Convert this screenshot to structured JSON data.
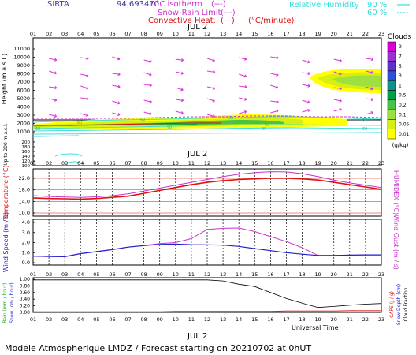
{
  "header": {
    "station": "SIRTA",
    "code": "94.693470",
    "isotherm_label": "0°C isotherm",
    "snow_rain_label": "Snow-Rain Limit",
    "convective_label": "Convective Heat.",
    "convective_unit": "(°C/minute)",
    "rh_label": "Relative Humidity",
    "rh_90": "90 %",
    "rh_60": "60 %",
    "dashed_sample": "(---)",
    "solid_sample": "(—)"
  },
  "date_label": "JUL  2",
  "hours": [
    "01",
    "02",
    "03",
    "04",
    "05",
    "06",
    "07",
    "08",
    "09",
    "10",
    "11",
    "12",
    "13",
    "14",
    "15",
    "16",
    "17",
    "18",
    "19",
    "20",
    "21",
    "22",
    "23"
  ],
  "panel1": {
    "ylabel": "Height (m a.s.l.)",
    "ylabel_low": "Up to 200 m a.s.l.",
    "upper_ticks": [
      "11000",
      "10000",
      "9000",
      "8000",
      "7000",
      "6000",
      "5000",
      "4000",
      "3000",
      "2000",
      "1000"
    ],
    "lower_ticks": [
      "200",
      "180",
      "160",
      "140",
      "120",
      "100"
    ],
    "contour_labels": [
      "60",
      "60",
      "90",
      "60",
      "60",
      "60",
      "90",
      "60",
      "60"
    ],
    "clouds_title": "Clouds",
    "clouds_unit": "(g/kg)",
    "cloud_levels": [
      "9",
      "7",
      "5",
      "3",
      "1",
      "0.5",
      "0.2",
      "0.1",
      "0.05",
      "0.01"
    ],
    "cloud_colors": [
      "#d400d4",
      "#9b2fd1",
      "#5a33c9",
      "#2f50d6",
      "#138d8d",
      "#00a04a",
      "#45c445",
      "#9ee040",
      "#d6ee10",
      "#ffff00"
    ]
  },
  "panel2": {
    "ylabel": "Temperature (°C)",
    "ylabel_right": "HUMIDEX (°C)",
    "ticks": [
      "22.0",
      "18.0",
      "14.0",
      "10.0"
    ]
  },
  "panel3": {
    "ylabel": "Wind Speed (m / s)",
    "ylabel_right": "Wind Gust (m / s)",
    "ticks": [
      "4.0",
      "3.0",
      "2.0",
      "1.0",
      "0.0"
    ]
  },
  "panel4": {
    "ylabel_a": "Rain (mm / hour)",
    "ylabel_b": "Snow (cm / hour)",
    "ylabel_r1": "CAPE (J / g)",
    "ylabel_r2": "Snow Depth (cm)",
    "ylabel_r3": "Cloud Fraction",
    "ticks": [
      "1.00",
      "0.80",
      "0.60",
      "0.40",
      "0.20",
      "0.00"
    ],
    "xlabel": "Universal Time"
  },
  "footer": "Modele Atmospherique LMDZ / Forecast starting on 20210702 at 0hUT",
  "chart_data": [
    {
      "type": "line",
      "title": "Temperature",
      "x": [
        1,
        2,
        3,
        4,
        5,
        6,
        7,
        8,
        9,
        10,
        11,
        12,
        13,
        14,
        15,
        16,
        17,
        18,
        19,
        20,
        21,
        22,
        23
      ],
      "series": [
        {
          "name": "Temperature",
          "values": [
            15.2,
            15.0,
            14.9,
            14.8,
            15.0,
            15.4,
            15.8,
            16.8,
            17.8,
            18.8,
            19.8,
            20.6,
            21.2,
            21.6,
            21.8,
            22.0,
            22.0,
            21.8,
            21.4,
            20.6,
            19.8,
            19.0,
            18.2
          ]
        },
        {
          "name": "HUMIDEX",
          "values": [
            16.0,
            15.7,
            15.5,
            15.4,
            15.6,
            16.0,
            16.6,
            17.6,
            18.6,
            19.6,
            20.6,
            21.6,
            22.6,
            23.4,
            24.0,
            24.3,
            24.2,
            23.6,
            22.6,
            21.4,
            20.4,
            19.6,
            18.8
          ]
        }
      ],
      "ylim": [
        10,
        24
      ]
    },
    {
      "type": "line",
      "title": "Wind",
      "x": [
        1,
        2,
        3,
        4,
        5,
        6,
        7,
        8,
        9,
        10,
        11,
        12,
        13,
        14,
        15,
        16,
        17,
        18,
        19,
        20,
        21,
        22,
        23
      ],
      "series": [
        {
          "name": "Wind Speed",
          "values": [
            0.65,
            0.62,
            0.6,
            0.9,
            1.1,
            1.3,
            1.55,
            1.7,
            1.82,
            1.85,
            1.8,
            1.78,
            1.75,
            1.62,
            1.4,
            1.2,
            1.0,
            0.85,
            0.72,
            0.72,
            0.75,
            0.78,
            0.78
          ]
        },
        {
          "name": "Wind Gust",
          "values": [
            0.65,
            0.62,
            0.6,
            0.9,
            1.1,
            1.3,
            1.55,
            1.7,
            1.9,
            2.0,
            2.4,
            3.3,
            3.42,
            3.45,
            3.1,
            2.6,
            2.1,
            1.5,
            0.72,
            0.72,
            0.75,
            0.78,
            0.78
          ]
        }
      ],
      "ylim": [
        0,
        4
      ]
    },
    {
      "type": "line",
      "title": "Cloud Fraction",
      "x": [
        1,
        2,
        3,
        4,
        5,
        6,
        7,
        8,
        9,
        10,
        11,
        12,
        13,
        14,
        15,
        16,
        17,
        18,
        19,
        20,
        21,
        22,
        23
      ],
      "series": [
        {
          "name": "Cloud Fraction",
          "values": [
            0.98,
            0.98,
            0.98,
            0.98,
            0.98,
            0.98,
            0.98,
            0.98,
            0.98,
            0.98,
            0.98,
            0.98,
            0.95,
            0.85,
            0.78,
            0.6,
            0.42,
            0.28,
            0.15,
            0.18,
            0.22,
            0.25,
            0.27
          ]
        },
        {
          "name": "Rain",
          "values": [
            0.02,
            0.02,
            0.02,
            0.02,
            0.02,
            0.02,
            0.02,
            0.02,
            0.02,
            0.03,
            0.03,
            0.03,
            0.03,
            0.03,
            0.03,
            0.03,
            0.04,
            0.04,
            0.04,
            0.04,
            0.05,
            0.05,
            0.05
          ]
        }
      ],
      "ylim": [
        0,
        1
      ]
    }
  ]
}
